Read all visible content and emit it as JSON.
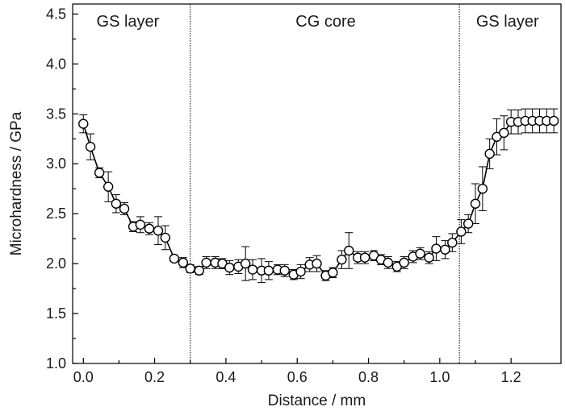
{
  "chart_data": {
    "type": "scatter",
    "title": "",
    "xlabel": "Distance / mm",
    "ylabel": "Microhardness / GPa",
    "xlim": [
      -0.03,
      1.34
    ],
    "ylim": [
      1.0,
      4.6
    ],
    "xticks": [
      0.0,
      0.2,
      0.4,
      0.6,
      0.8,
      1.0,
      1.2
    ],
    "xtick_labels": [
      "0.0",
      "0.2",
      "0.4",
      "0.6",
      "0.8",
      "1.0",
      "1.2"
    ],
    "yticks": [
      1.0,
      1.5,
      2.0,
      2.5,
      3.0,
      3.5,
      4.0,
      4.5
    ],
    "ytick_labels": [
      "1.0",
      "1.5",
      "2.0",
      "2.5",
      "3.0",
      "3.5",
      "4.0",
      "4.5"
    ],
    "grid": false,
    "marker": "open-circle",
    "line_color": "#000000",
    "boundaries": [
      0.3,
      1.055
    ],
    "regions": [
      {
        "label": "GS layer",
        "x": 0.125
      },
      {
        "label": "CG core",
        "x": 0.68
      },
      {
        "label": "GS layer",
        "x": 1.19
      }
    ],
    "series": [
      {
        "x": [
          0.0,
          0.02,
          0.045,
          0.07,
          0.092,
          0.115,
          0.14,
          0.16,
          0.185,
          0.21,
          0.23,
          0.255,
          0.28,
          0.3,
          0.325,
          0.345,
          0.37,
          0.39,
          0.41,
          0.435,
          0.455,
          0.475,
          0.5,
          0.52,
          0.545,
          0.565,
          0.59,
          0.61,
          0.635,
          0.655,
          0.68,
          0.7,
          0.725,
          0.745,
          0.77,
          0.79,
          0.815,
          0.835,
          0.855,
          0.88,
          0.9,
          0.925,
          0.945,
          0.97,
          0.99,
          1.015,
          1.035,
          1.06,
          1.08,
          1.1,
          1.12,
          1.14,
          1.16,
          1.18,
          1.2,
          1.22,
          1.24,
          1.26,
          1.28,
          1.3,
          1.32
        ],
        "y": [
          3.4,
          3.17,
          2.91,
          2.77,
          2.6,
          2.55,
          2.37,
          2.39,
          2.35,
          2.33,
          2.26,
          2.05,
          2.01,
          1.95,
          1.93,
          2.01,
          2.01,
          2.0,
          1.96,
          1.97,
          2.0,
          1.94,
          1.93,
          1.93,
          1.94,
          1.93,
          1.89,
          1.92,
          1.99,
          2.0,
          1.88,
          1.91,
          2.04,
          2.13,
          2.06,
          2.06,
          2.08,
          2.04,
          2.01,
          1.97,
          2.01,
          2.07,
          2.1,
          2.06,
          2.15,
          2.14,
          2.21,
          2.32,
          2.4,
          2.6,
          2.75,
          3.1,
          3.27,
          3.31,
          3.42,
          3.42,
          3.43,
          3.43,
          3.43,
          3.43,
          3.43
        ],
        "err": [
          0.09,
          0.13,
          0.05,
          0.15,
          0.09,
          0.06,
          0.05,
          0.08,
          0.06,
          0.14,
          0.12,
          0.03,
          0.05,
          0.04,
          0.04,
          0.06,
          0.06,
          0.05,
          0.07,
          0.07,
          0.17,
          0.1,
          0.12,
          0.09,
          0.05,
          0.06,
          0.05,
          0.07,
          0.07,
          0.08,
          0.05,
          0.05,
          0.09,
          0.18,
          0.06,
          0.06,
          0.05,
          0.05,
          0.06,
          0.05,
          0.06,
          0.06,
          0.06,
          0.06,
          0.12,
          0.09,
          0.09,
          0.12,
          0.09,
          0.2,
          0.22,
          0.15,
          0.18,
          0.17,
          0.12,
          0.12,
          0.12,
          0.12,
          0.12,
          0.12,
          0.12
        ]
      }
    ]
  }
}
